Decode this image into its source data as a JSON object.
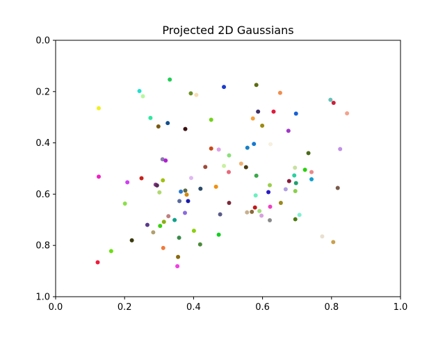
{
  "chart_data": {
    "type": "scatter",
    "title": "Projected 2D Gaussians",
    "xlabel": "",
    "ylabel": "",
    "xlim": [
      0.0,
      1.0
    ],
    "ylim": [
      1.0,
      0.0
    ],
    "y_inverted": true,
    "grid": false,
    "x_ticks": [
      "0.0",
      "0.2",
      "0.4",
      "0.6",
      "0.8",
      "1.0"
    ],
    "y_ticks": [
      "0.0",
      "0.2",
      "0.4",
      "0.6",
      "0.8",
      "1.0"
    ],
    "points": [
      {
        "x": 0.331,
        "y": 0.153,
        "color": "#1fce56"
      },
      {
        "x": 0.392,
        "y": 0.207,
        "color": "#6b8e23"
      },
      {
        "x": 0.408,
        "y": 0.213,
        "color": "#f5deb3"
      },
      {
        "x": 0.243,
        "y": 0.198,
        "color": "#1ee0d0"
      },
      {
        "x": 0.253,
        "y": 0.218,
        "color": "#b7f7a0"
      },
      {
        "x": 0.488,
        "y": 0.182,
        "color": "#1b3ccf"
      },
      {
        "x": 0.582,
        "y": 0.174,
        "color": "#5e6b10"
      },
      {
        "x": 0.651,
        "y": 0.205,
        "color": "#f08d4c"
      },
      {
        "x": 0.797,
        "y": 0.232,
        "color": "#66c1b8"
      },
      {
        "x": 0.806,
        "y": 0.244,
        "color": "#c8223a"
      },
      {
        "x": 0.845,
        "y": 0.285,
        "color": "#f4a28c"
      },
      {
        "x": 0.125,
        "y": 0.265,
        "color": "#f0f020"
      },
      {
        "x": 0.587,
        "y": 0.278,
        "color": "#3c2f66"
      },
      {
        "x": 0.632,
        "y": 0.278,
        "color": "#e01a3c"
      },
      {
        "x": 0.697,
        "y": 0.286,
        "color": "#1560d8"
      },
      {
        "x": 0.275,
        "y": 0.303,
        "color": "#2ee8a0"
      },
      {
        "x": 0.325,
        "y": 0.323,
        "color": "#104f8c"
      },
      {
        "x": 0.451,
        "y": 0.31,
        "color": "#73d21a"
      },
      {
        "x": 0.572,
        "y": 0.305,
        "color": "#f4a03a"
      },
      {
        "x": 0.298,
        "y": 0.336,
        "color": "#7a5a10"
      },
      {
        "x": 0.376,
        "y": 0.346,
        "color": "#3a1010"
      },
      {
        "x": 0.599,
        "y": 0.333,
        "color": "#9c8a10"
      },
      {
        "x": 0.675,
        "y": 0.353,
        "color": "#a037c8"
      },
      {
        "x": 0.623,
        "y": 0.405,
        "color": "#f5f0e0"
      },
      {
        "x": 0.575,
        "y": 0.404,
        "color": "#1579d0"
      },
      {
        "x": 0.556,
        "y": 0.419,
        "color": "#1780c8"
      },
      {
        "x": 0.451,
        "y": 0.422,
        "color": "#c84a1a"
      },
      {
        "x": 0.473,
        "y": 0.426,
        "color": "#e0a0e8"
      },
      {
        "x": 0.503,
        "y": 0.449,
        "color": "#8ae07a"
      },
      {
        "x": 0.733,
        "y": 0.44,
        "color": "#4a6a1a"
      },
      {
        "x": 0.825,
        "y": 0.424,
        "color": "#c090e8"
      },
      {
        "x": 0.31,
        "y": 0.464,
        "color": "#8a7ab0"
      },
      {
        "x": 0.319,
        "y": 0.469,
        "color": "#b020d0"
      },
      {
        "x": 0.434,
        "y": 0.494,
        "color": "#a04a3a"
      },
      {
        "x": 0.488,
        "y": 0.49,
        "color": "#c8f0a0"
      },
      {
        "x": 0.538,
        "y": 0.481,
        "color": "#f0b070"
      },
      {
        "x": 0.552,
        "y": 0.495,
        "color": "#4a3a10"
      },
      {
        "x": 0.502,
        "y": 0.514,
        "color": "#e86a7a"
      },
      {
        "x": 0.694,
        "y": 0.497,
        "color": "#c8e0a0"
      },
      {
        "x": 0.723,
        "y": 0.505,
        "color": "#2ad010"
      },
      {
        "x": 0.742,
        "y": 0.514,
        "color": "#e88a8a"
      },
      {
        "x": 0.125,
        "y": 0.532,
        "color": "#f020c0"
      },
      {
        "x": 0.249,
        "y": 0.538,
        "color": "#c8201a"
      },
      {
        "x": 0.208,
        "y": 0.554,
        "color": "#d040f0"
      },
      {
        "x": 0.311,
        "y": 0.546,
        "color": "#a0c010"
      },
      {
        "x": 0.393,
        "y": 0.537,
        "color": "#e0b8f0"
      },
      {
        "x": 0.582,
        "y": 0.528,
        "color": "#3aa84a"
      },
      {
        "x": 0.692,
        "y": 0.527,
        "color": "#2ad0a0"
      },
      {
        "x": 0.742,
        "y": 0.542,
        "color": "#10a0d0"
      },
      {
        "x": 0.29,
        "y": 0.563,
        "color": "#8a3a8a"
      },
      {
        "x": 0.294,
        "y": 0.566,
        "color": "#5a2a5a"
      },
      {
        "x": 0.621,
        "y": 0.565,
        "color": "#9ad04a"
      },
      {
        "x": 0.677,
        "y": 0.549,
        "color": "#8a1a3a"
      },
      {
        "x": 0.697,
        "y": 0.557,
        "color": "#20a070"
      },
      {
        "x": 0.818,
        "y": 0.576,
        "color": "#7a5a4a"
      },
      {
        "x": 0.363,
        "y": 0.59,
        "color": "#2a7ad0"
      },
      {
        "x": 0.376,
        "y": 0.586,
        "color": "#5a6a4a"
      },
      {
        "x": 0.42,
        "y": 0.579,
        "color": "#2a4a6a"
      },
      {
        "x": 0.465,
        "y": 0.571,
        "color": "#f09010"
      },
      {
        "x": 0.617,
        "y": 0.592,
        "color": "#2a1ac8"
      },
      {
        "x": 0.667,
        "y": 0.581,
        "color": "#b0a0e0"
      },
      {
        "x": 0.695,
        "y": 0.588,
        "color": "#8ad04a"
      },
      {
        "x": 0.58,
        "y": 0.605,
        "color": "#6af0c0"
      },
      {
        "x": 0.301,
        "y": 0.593,
        "color": "#b0d870"
      },
      {
        "x": 0.38,
        "y": 0.602,
        "color": "#d08a10"
      },
      {
        "x": 0.359,
        "y": 0.627,
        "color": "#5a6aa0"
      },
      {
        "x": 0.384,
        "y": 0.627,
        "color": "#1a1ab0"
      },
      {
        "x": 0.503,
        "y": 0.634,
        "color": "#7a2a3a"
      },
      {
        "x": 0.653,
        "y": 0.634,
        "color": "#9a8a1a"
      },
      {
        "x": 0.201,
        "y": 0.637,
        "color": "#8ae04a"
      },
      {
        "x": 0.578,
        "y": 0.652,
        "color": "#c01a1a"
      },
      {
        "x": 0.622,
        "y": 0.649,
        "color": "#f040c0"
      },
      {
        "x": 0.555,
        "y": 0.671,
        "color": "#c8b090"
      },
      {
        "x": 0.569,
        "y": 0.669,
        "color": "#8a6a3a"
      },
      {
        "x": 0.591,
        "y": 0.666,
        "color": "#a0e07a"
      },
      {
        "x": 0.375,
        "y": 0.673,
        "color": "#8a6ae0"
      },
      {
        "x": 0.477,
        "y": 0.679,
        "color": "#5a5a8a"
      },
      {
        "x": 0.597,
        "y": 0.684,
        "color": "#d8a0e0"
      },
      {
        "x": 0.327,
        "y": 0.686,
        "color": "#c08080"
      },
      {
        "x": 0.345,
        "y": 0.701,
        "color": "#10a08a"
      },
      {
        "x": 0.314,
        "y": 0.708,
        "color": "#8ab010"
      },
      {
        "x": 0.621,
        "y": 0.702,
        "color": "#8a8a8a"
      },
      {
        "x": 0.707,
        "y": 0.681,
        "color": "#80f0d0"
      },
      {
        "x": 0.695,
        "y": 0.698,
        "color": "#4a7a10"
      },
      {
        "x": 0.266,
        "y": 0.72,
        "color": "#5a3a8a"
      },
      {
        "x": 0.303,
        "y": 0.724,
        "color": "#3ad010"
      },
      {
        "x": 0.283,
        "y": 0.749,
        "color": "#b0a070"
      },
      {
        "x": 0.401,
        "y": 0.743,
        "color": "#8ad010"
      },
      {
        "x": 0.473,
        "y": 0.758,
        "color": "#10d020"
      },
      {
        "x": 0.358,
        "y": 0.77,
        "color": "#3a8a4a"
      },
      {
        "x": 0.773,
        "y": 0.765,
        "color": "#e8e0d0"
      },
      {
        "x": 0.221,
        "y": 0.78,
        "color": "#3a3a10"
      },
      {
        "x": 0.419,
        "y": 0.796,
        "color": "#4a8a3a"
      },
      {
        "x": 0.805,
        "y": 0.787,
        "color": "#c8a050"
      },
      {
        "x": 0.312,
        "y": 0.81,
        "color": "#f07a3a"
      },
      {
        "x": 0.161,
        "y": 0.822,
        "color": "#6ae010"
      },
      {
        "x": 0.355,
        "y": 0.845,
        "color": "#8a6a10"
      },
      {
        "x": 0.122,
        "y": 0.866,
        "color": "#f01a3a"
      },
      {
        "x": 0.353,
        "y": 0.881,
        "color": "#f040e0"
      }
    ]
  }
}
